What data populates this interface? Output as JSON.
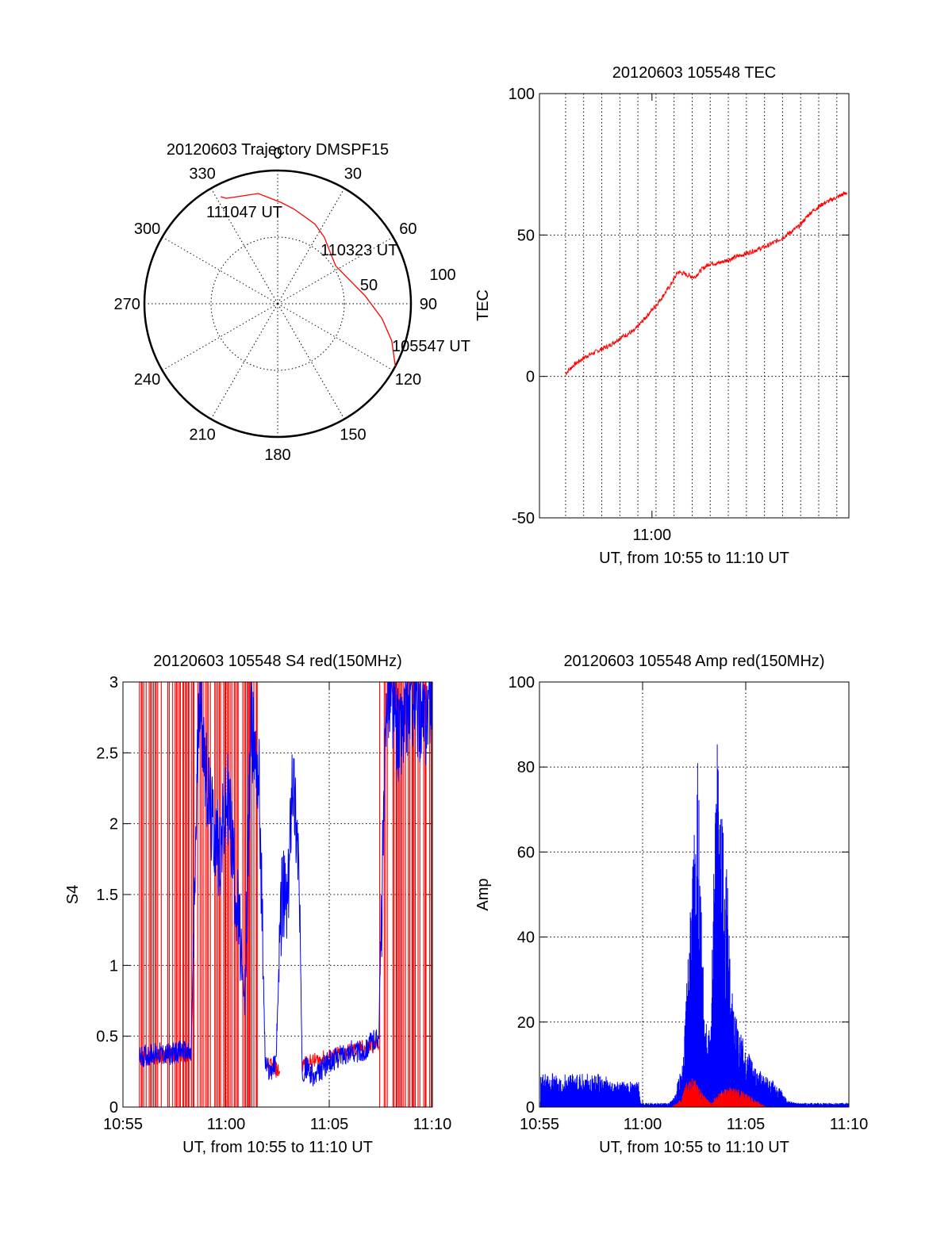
{
  "colors": {
    "red": "#ff0000",
    "blue": "#0000ff",
    "axis": "#000000",
    "grid": "#000000"
  },
  "chart_data": [
    {
      "id": "trajectory",
      "type": "polar",
      "title": "20120603 Trajectory DMSPF15",
      "angle_labels": [
        "0",
        "30",
        "60",
        "90",
        "120",
        "150",
        "180",
        "210",
        "240",
        "270",
        "300",
        "330"
      ],
      "radial_labels": [
        "50",
        "100"
      ],
      "rlim": [
        0,
        100
      ],
      "series": [
        {
          "color": "#ff0000",
          "points": [
            [
              118,
              100
            ],
            [
              108,
              90
            ],
            [
              98,
              79
            ],
            [
              85,
              66
            ],
            [
              70,
              56
            ],
            [
              57,
              52
            ],
            [
              46,
              55
            ],
            [
              35,
              61
            ],
            [
              25,
              66
            ],
            [
              10,
              72
            ],
            [
              2,
              76
            ],
            [
              -10,
              84
            ],
            [
              -26,
              88
            ],
            [
              -28,
              91
            ]
          ]
        }
      ],
      "annotations": [
        {
          "text": "105547 UT",
          "theta": 118,
          "r": 100
        },
        {
          "text": "110323 UT",
          "theta": 57,
          "r": 52
        },
        {
          "text": "111047 UT",
          "theta": -27,
          "r": 90
        }
      ]
    },
    {
      "id": "tec",
      "type": "line",
      "title": "20120603 105548 TEC",
      "xlabel": "UT, from 10:55 to 11:10 UT",
      "ylabel": "TEC",
      "xlim": [
        -1.3,
        14.1
      ],
      "ylim": [
        -50,
        100
      ],
      "xticks": [
        {
          "x": 4.3,
          "label": "11:00"
        }
      ],
      "yticks": [
        -50,
        0,
        50,
        100
      ],
      "xgrid": [
        0.0,
        0.9,
        1.8,
        2.7,
        3.6,
        4.5,
        5.4,
        6.3,
        7.2,
        8.1,
        9.0,
        9.9,
        10.8,
        11.7,
        12.6,
        13.5
      ],
      "series": [
        {
          "color": "#ff0000",
          "x": [
            0.0,
            0.4,
            1.0,
            1.6,
            2.2,
            2.8,
            3.4,
            4.0,
            4.6,
            5.2,
            5.6,
            6.0,
            6.4,
            6.8,
            7.2,
            7.6,
            8.4,
            9.2,
            10.0,
            10.8,
            11.6,
            12.2,
            12.8,
            13.4,
            14.0
          ],
          "y": [
            1,
            4,
            7,
            9,
            11,
            14,
            16,
            21,
            26,
            32,
            37,
            36,
            35,
            38,
            40,
            40,
            42,
            44,
            46,
            49,
            53,
            58,
            61,
            63,
            65
          ]
        }
      ]
    },
    {
      "id": "s4",
      "type": "line",
      "title": "20120603 105548 S4 red(150MHz)",
      "xlabel": "UT, from 10:55 to 11:10 UT",
      "ylabel": "S4",
      "xlim": [
        0,
        15
      ],
      "ylim": [
        0,
        3
      ],
      "xticks": [
        {
          "x": 0,
          "label": "10:55"
        },
        {
          "x": 5,
          "label": "11:00"
        },
        {
          "x": 10,
          "label": "11:05"
        },
        {
          "x": 15,
          "label": "11:10"
        }
      ],
      "yticks": [
        0,
        0.5,
        1,
        1.5,
        2,
        2.5,
        3
      ],
      "ytick_labels": [
        "0",
        "0.5",
        "1",
        "1.5",
        "2",
        "2.5",
        "3"
      ],
      "series": [
        {
          "color": "#ff0000",
          "segments": [
            {
              "x": [
                0.8,
                3.2
              ],
              "y": [
                0.35,
                0.38
              ]
            },
            {
              "x": [
                7.0,
                7.6
              ],
              "y": [
                0.3,
                0.25
              ]
            },
            {
              "x": [
                8.7,
                12.4
              ],
              "y": [
                0.3,
                0.45
              ]
            }
          ],
          "spikes": [
            [
              0.8,
              6.6
            ],
            [
              12.4,
              15
            ]
          ]
        },
        {
          "color": "#0000ff",
          "x": [
            0.8,
            1.5,
            2.2,
            2.9,
            3.3,
            3.7,
            4.0,
            4.3,
            4.7,
            5.1,
            5.6,
            5.9,
            6.2,
            6.6,
            6.9,
            7.1,
            7.4,
            7.7,
            8.0,
            8.2,
            8.5,
            8.7,
            8.9,
            9.3,
            9.8,
            10.4,
            11.0,
            11.6,
            12.0,
            12.4,
            12.8,
            13.4,
            14.0,
            14.6,
            15.0
          ],
          "y": [
            0.35,
            0.38,
            0.37,
            0.4,
            0.36,
            3.0,
            2.4,
            2.0,
            1.8,
            2.2,
            1.3,
            0.7,
            2.7,
            2.3,
            0.3,
            0.25,
            0.3,
            1.5,
            1.4,
            2.4,
            1.8,
            0.25,
            0.28,
            0.2,
            0.3,
            0.35,
            0.4,
            0.38,
            0.45,
            0.5,
            3.0,
            2.6,
            2.9,
            2.7,
            3.0
          ]
        }
      ]
    },
    {
      "id": "amp",
      "type": "line",
      "title": "20120603 105548 Amp red(150MHz)",
      "xlabel": "UT, from 10:55 to 11:10 UT",
      "ylabel": "Amp",
      "xlim": [
        0,
        15
      ],
      "ylim": [
        0,
        100
      ],
      "xticks": [
        {
          "x": 0,
          "label": "10:55"
        },
        {
          "x": 5,
          "label": "11:00"
        },
        {
          "x": 10,
          "label": "11:05"
        },
        {
          "x": 15,
          "label": "11:10"
        }
      ],
      "yticks": [
        0,
        20,
        40,
        60,
        80,
        100
      ],
      "series": [
        {
          "color": "#0000ff",
          "x": [
            1.8,
            4.8,
            4.9,
            6.3,
            6.6,
            7.0,
            7.3,
            7.7,
            8.0,
            8.3,
            8.6,
            8.9,
            9.1,
            9.3,
            9.6,
            10.0,
            10.4,
            10.8,
            11.2,
            11.6,
            12.0,
            12.4,
            13.0,
            14.0,
            15.0
          ],
          "y": [
            6,
            6,
            1,
            1,
            3,
            15,
            45,
            84,
            20,
            20,
            90,
            65,
            55,
            30,
            20,
            15,
            10,
            8,
            7,
            5,
            2,
            1,
            1,
            1,
            1
          ],
          "band_lo": [
            0,
            0,
            0,
            0,
            0,
            0,
            0,
            0,
            0,
            0,
            2,
            5,
            5,
            3,
            2,
            1,
            1,
            0,
            0,
            0,
            0,
            0,
            0,
            0,
            0
          ]
        },
        {
          "color": "#ff0000",
          "x": [
            6.4,
            6.9,
            7.1,
            7.5,
            7.8,
            8.3,
            8.6,
            9.2,
            9.8,
            10.4,
            11.0
          ],
          "y": [
            0,
            2,
            6,
            7,
            4,
            1,
            3,
            5,
            4,
            2,
            0
          ]
        }
      ]
    }
  ]
}
